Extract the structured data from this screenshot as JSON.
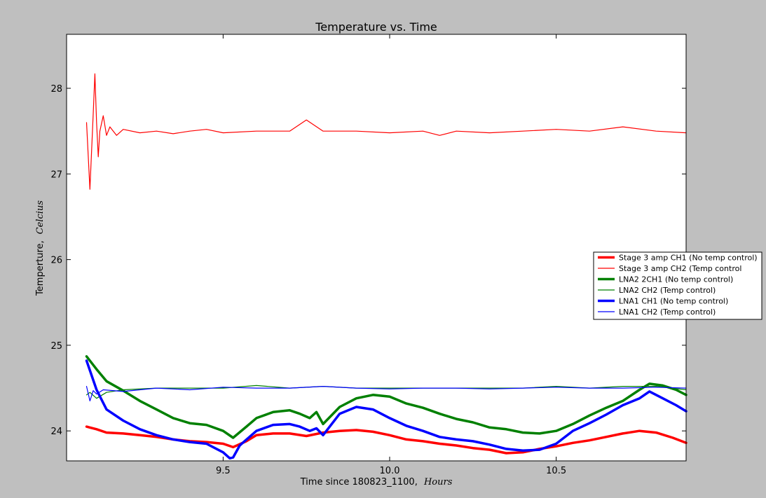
{
  "chart_data": {
    "type": "line",
    "title": "Temperature vs. Time",
    "xlabel": "Time since 180823_1100,",
    "xlabel_unit": "Hours",
    "ylabel": "Temperture,",
    "ylabel_unit": "Celcius",
    "xlim": [
      9.03,
      10.89
    ],
    "ylim": [
      23.65,
      28.63
    ],
    "xticks": [
      9.5,
      10.0,
      10.5
    ],
    "xtick_labels": [
      "9.5",
      "10.0",
      "10.5"
    ],
    "yticks": [
      24,
      25,
      26,
      27,
      28
    ],
    "ytick_labels": [
      "24",
      "25",
      "26",
      "27",
      "28"
    ],
    "grid": false,
    "legend_position": "center-right",
    "series": [
      {
        "name": "Stage 3 amp CH1 (No temp control)",
        "color": "#ff0000",
        "linewidth": "thick",
        "x": [
          9.09,
          9.12,
          9.15,
          9.2,
          9.25,
          9.3,
          9.35,
          9.4,
          9.45,
          9.5,
          9.53,
          9.57,
          9.6,
          9.65,
          9.7,
          9.75,
          9.8,
          9.85,
          9.9,
          9.95,
          10.0,
          10.05,
          10.1,
          10.15,
          10.2,
          10.25,
          10.3,
          10.35,
          10.4,
          10.45,
          10.5,
          10.55,
          10.6,
          10.65,
          10.7,
          10.75,
          10.8,
          10.85,
          10.89
        ],
        "values": [
          24.05,
          24.02,
          23.98,
          23.97,
          23.95,
          23.93,
          23.9,
          23.88,
          23.87,
          23.85,
          23.81,
          23.88,
          23.95,
          23.97,
          23.97,
          23.94,
          23.98,
          24.0,
          24.01,
          23.99,
          23.95,
          23.9,
          23.88,
          23.85,
          23.83,
          23.8,
          23.78,
          23.74,
          23.75,
          23.79,
          23.82,
          23.86,
          23.89,
          23.93,
          23.97,
          24.0,
          23.98,
          23.92,
          23.86
        ]
      },
      {
        "name": "Stage 3 amp CH2 (Temp control",
        "color": "#ff0000",
        "linewidth": "thin",
        "x": [
          9.09,
          9.1,
          9.11,
          9.115,
          9.12,
          9.125,
          9.13,
          9.14,
          9.15,
          9.16,
          9.18,
          9.2,
          9.25,
          9.3,
          9.35,
          9.4,
          9.45,
          9.5,
          9.6,
          9.7,
          9.75,
          9.8,
          9.9,
          10.0,
          10.1,
          10.15,
          10.2,
          10.3,
          10.4,
          10.5,
          10.6,
          10.7,
          10.8,
          10.89
        ],
        "values": [
          27.6,
          26.82,
          27.7,
          28.17,
          27.6,
          27.2,
          27.5,
          27.68,
          27.45,
          27.55,
          27.45,
          27.52,
          27.48,
          27.5,
          27.47,
          27.5,
          27.52,
          27.48,
          27.5,
          27.5,
          27.63,
          27.5,
          27.5,
          27.48,
          27.5,
          27.45,
          27.5,
          27.48,
          27.5,
          27.52,
          27.5,
          27.55,
          27.5,
          27.48
        ]
      },
      {
        "name": "LNA2 2CH1 (No temp control)",
        "color": "#008000",
        "linewidth": "thick",
        "x": [
          9.09,
          9.12,
          9.15,
          9.2,
          9.25,
          9.3,
          9.35,
          9.4,
          9.45,
          9.5,
          9.53,
          9.57,
          9.6,
          9.65,
          9.7,
          9.73,
          9.76,
          9.78,
          9.8,
          9.85,
          9.9,
          9.95,
          10.0,
          10.05,
          10.1,
          10.15,
          10.2,
          10.25,
          10.3,
          10.35,
          10.4,
          10.45,
          10.5,
          10.55,
          10.6,
          10.65,
          10.7,
          10.75,
          10.78,
          10.82,
          10.86,
          10.89
        ],
        "values": [
          24.87,
          24.72,
          24.58,
          24.47,
          24.35,
          24.25,
          24.15,
          24.09,
          24.07,
          24.0,
          23.92,
          24.05,
          24.15,
          24.22,
          24.24,
          24.2,
          24.15,
          24.22,
          24.08,
          24.28,
          24.38,
          24.42,
          24.4,
          24.32,
          24.27,
          24.2,
          24.14,
          24.1,
          24.04,
          24.02,
          23.98,
          23.97,
          24.0,
          24.08,
          24.18,
          24.27,
          24.35,
          24.48,
          24.55,
          24.53,
          24.48,
          24.42
        ]
      },
      {
        "name": "LNA2 CH2  (Temp control)",
        "color": "#008000",
        "linewidth": "thin",
        "x": [
          9.09,
          9.1,
          9.12,
          9.15,
          9.2,
          9.3,
          9.4,
          9.5,
          9.6,
          9.7,
          9.8,
          9.9,
          10.0,
          10.1,
          10.2,
          10.3,
          10.4,
          10.5,
          10.6,
          10.7,
          10.8,
          10.89
        ],
        "values": [
          24.42,
          24.45,
          24.38,
          24.45,
          24.48,
          24.5,
          24.5,
          24.5,
          24.53,
          24.5,
          24.52,
          24.5,
          24.5,
          24.5,
          24.5,
          24.5,
          24.5,
          24.52,
          24.5,
          24.52,
          24.52,
          24.48
        ]
      },
      {
        "name": "LNA1 CH1 (No temp control)",
        "color": "#0000ff",
        "linewidth": "thick",
        "x": [
          9.09,
          9.12,
          9.15,
          9.2,
          9.25,
          9.3,
          9.35,
          9.4,
          9.45,
          9.5,
          9.52,
          9.53,
          9.55,
          9.6,
          9.65,
          9.7,
          9.73,
          9.76,
          9.78,
          9.8,
          9.85,
          9.9,
          9.95,
          10.0,
          10.05,
          10.1,
          10.15,
          10.2,
          10.25,
          10.3,
          10.35,
          10.4,
          10.45,
          10.5,
          10.55,
          10.6,
          10.65,
          10.7,
          10.75,
          10.78,
          10.82,
          10.86,
          10.89
        ],
        "values": [
          24.82,
          24.48,
          24.25,
          24.12,
          24.02,
          23.95,
          23.9,
          23.87,
          23.85,
          23.75,
          23.68,
          23.69,
          23.83,
          24.0,
          24.07,
          24.08,
          24.05,
          24.0,
          24.03,
          23.95,
          24.2,
          24.28,
          24.25,
          24.15,
          24.06,
          24.0,
          23.93,
          23.9,
          23.88,
          23.84,
          23.79,
          23.77,
          23.78,
          23.85,
          24.0,
          24.09,
          24.19,
          24.3,
          24.38,
          24.46,
          24.38,
          24.3,
          24.23
        ]
      },
      {
        "name": "LNA1 CH2  (Temp control)",
        "color": "#0000ff",
        "linewidth": "thin",
        "x": [
          9.09,
          9.1,
          9.11,
          9.12,
          9.14,
          9.2,
          9.3,
          9.4,
          9.5,
          9.6,
          9.7,
          9.8,
          9.9,
          10.0,
          10.1,
          10.2,
          10.3,
          10.4,
          10.5,
          10.6,
          10.7,
          10.8,
          10.89
        ],
        "values": [
          24.52,
          24.35,
          24.47,
          24.43,
          24.48,
          24.46,
          24.5,
          24.48,
          24.51,
          24.5,
          24.5,
          24.52,
          24.5,
          24.49,
          24.5,
          24.5,
          24.49,
          24.5,
          24.51,
          24.5,
          24.5,
          24.51,
          24.5
        ]
      }
    ]
  }
}
